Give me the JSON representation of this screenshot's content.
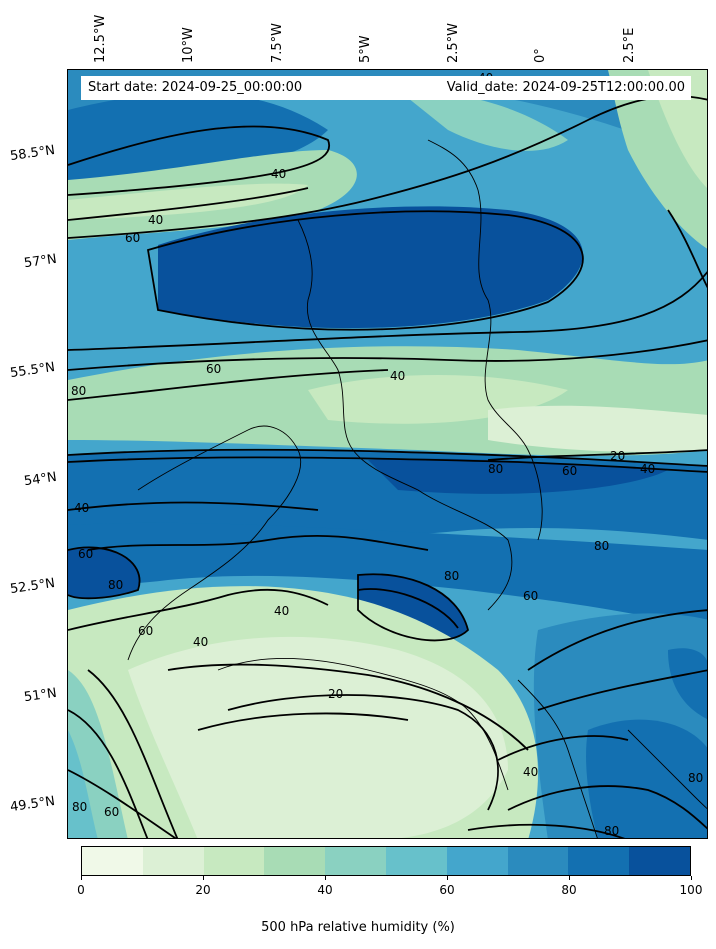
{
  "header": {
    "start_date": "Start date: 2024-09-25_00:00:00",
    "valid_date": "Valid_date: 2024-09-25T12:00:00.00"
  },
  "longitude_labels": [
    "12.5°W",
    "10°W",
    "7.5°W",
    "5°W",
    "2.5°W",
    "0°",
    "2.5°E"
  ],
  "latitude_labels": [
    "58.5°N",
    "57°N",
    "55.5°N",
    "54°N",
    "52.5°N",
    "51°N",
    "49.5°N"
  ],
  "colorbar": {
    "label": "500 hPa relative humidity (%)",
    "ticks": [
      "0",
      "20",
      "40",
      "60",
      "80",
      "100"
    ],
    "colors": [
      "#f0f9e8",
      "#dcf0d5",
      "#c7e9c0",
      "#a8dcb5",
      "#8ad1c1",
      "#67c1cb",
      "#44a6cc",
      "#2b8bbe",
      "#1370b1",
      "#08519c"
    ]
  },
  "contour_labels": [
    "40",
    "60",
    "40",
    "60",
    "80",
    "40",
    "20",
    "80",
    "60",
    "40",
    "40",
    "60",
    "80",
    "80",
    "80",
    "60",
    "60",
    "40",
    "40",
    "20",
    "40",
    "80",
    "60",
    "80",
    "80",
    "40"
  ]
}
